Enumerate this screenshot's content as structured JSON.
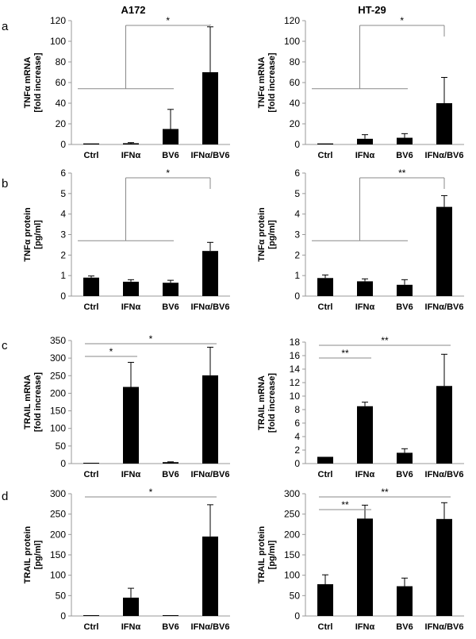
{
  "column_titles": [
    "A172",
    "HT-29"
  ],
  "row_labels": [
    "a",
    "b",
    "c",
    "d"
  ],
  "chart_data": [
    {
      "type": "bar",
      "panel": "a",
      "title": "A172",
      "categories": [
        "Ctrl",
        "IFNα",
        "BV6",
        "IFNα/BV6"
      ],
      "values": [
        1,
        1.2,
        15,
        70
      ],
      "errors": [
        0,
        0.6,
        19,
        44
      ],
      "ylabel": [
        "TNFα mRNA",
        "[fold increase]"
      ],
      "ylim": [
        0,
        120
      ],
      "yticks": [
        0,
        20,
        40,
        60,
        80,
        100,
        120
      ],
      "significance": [
        {
          "label": "*",
          "type": "group",
          "from": 0,
          "to": 2,
          "target": 3
        }
      ]
    },
    {
      "type": "bar",
      "panel": "a",
      "title": "HT-29",
      "categories": [
        "Ctrl",
        "IFNα",
        "BV6",
        "IFNα/BV6"
      ],
      "values": [
        1,
        5.5,
        6.5,
        40
      ],
      "errors": [
        0,
        4,
        4,
        25
      ],
      "ylabel": [
        "TNFα mRNA",
        "[fold increase]"
      ],
      "ylim": [
        0,
        120
      ],
      "yticks": [
        0,
        20,
        40,
        60,
        80,
        100,
        120
      ],
      "significance": [
        {
          "label": "*",
          "type": "group",
          "from": 0,
          "to": 2,
          "target": 3
        }
      ]
    },
    {
      "type": "bar",
      "panel": "b",
      "title": "A172",
      "categories": [
        "Ctrl",
        "IFNα",
        "BV6",
        "IFNα/BV6"
      ],
      "values": [
        0.9,
        0.7,
        0.65,
        2.2
      ],
      "errors": [
        0.08,
        0.1,
        0.12,
        0.42
      ],
      "ylabel": [
        "TNFα protein",
        "[pg/ml]"
      ],
      "ylim": [
        0,
        6
      ],
      "yticks": [
        0,
        1,
        2,
        3,
        4,
        5,
        6
      ],
      "significance": [
        {
          "label": "*",
          "type": "group",
          "from": 0,
          "to": 2,
          "target": 3
        }
      ]
    },
    {
      "type": "bar",
      "panel": "b",
      "title": "HT-29",
      "categories": [
        "Ctrl",
        "IFNα",
        "BV6",
        "IFNα/BV6"
      ],
      "values": [
        0.88,
        0.72,
        0.55,
        4.35
      ],
      "errors": [
        0.15,
        0.12,
        0.25,
        0.55
      ],
      "ylabel": [
        "TNFα protein",
        "[pg/ml]"
      ],
      "ylim": [
        0,
        6
      ],
      "yticks": [
        0,
        1,
        2,
        3,
        4,
        5,
        6
      ],
      "significance": [
        {
          "label": "**",
          "type": "group",
          "from": 0,
          "to": 2,
          "target": 3
        }
      ]
    },
    {
      "type": "bar",
      "panel": "c",
      "title": "A172",
      "categories": [
        "Ctrl",
        "IFNα",
        "BV6",
        "IFNα/BV6"
      ],
      "values": [
        1,
        218,
        4,
        251
      ],
      "errors": [
        0,
        70,
        1,
        80
      ],
      "ylabel": [
        "TRAIL mRNA",
        "[fold increase]"
      ],
      "ylim": [
        0,
        350
      ],
      "yticks": [
        0,
        50,
        100,
        150,
        200,
        250,
        300,
        350
      ],
      "significance": [
        {
          "label": "*",
          "type": "bracket",
          "from": 0,
          "to": 1
        },
        {
          "label": "*",
          "type": "bracket",
          "from": 0,
          "to": 3
        }
      ]
    },
    {
      "type": "bar",
      "panel": "c",
      "title": "HT-29",
      "categories": [
        "Ctrl",
        "IFNα",
        "BV6",
        "IFNα/BV6"
      ],
      "values": [
        1,
        8.5,
        1.6,
        11.5
      ],
      "errors": [
        0,
        0.6,
        0.6,
        4.7
      ],
      "ylabel": [
        "TRAIL mRNA",
        "[fold increase]"
      ],
      "ylim": [
        0,
        18
      ],
      "yticks": [
        0,
        2,
        4,
        6,
        8,
        10,
        12,
        14,
        16,
        18
      ],
      "significance": [
        {
          "label": "**",
          "type": "bracket",
          "from": 0,
          "to": 1
        },
        {
          "label": "**",
          "type": "bracket",
          "from": 0,
          "to": 3
        }
      ]
    },
    {
      "type": "bar",
      "panel": "d",
      "title": "A172",
      "categories": [
        "Ctrl",
        "IFNα",
        "BV6",
        "IFNα/BV6"
      ],
      "values": [
        1,
        45,
        2,
        195
      ],
      "errors": [
        0,
        23,
        0,
        78
      ],
      "ylabel": [
        "TRAIL protein",
        "[pg/ml]"
      ],
      "ylim": [
        0,
        300
      ],
      "yticks": [
        0,
        50,
        100,
        150,
        200,
        250,
        300
      ],
      "significance": [
        {
          "label": "*",
          "type": "bracket",
          "from": 0,
          "to": 3
        }
      ]
    },
    {
      "type": "bar",
      "panel": "d",
      "title": "HT-29",
      "categories": [
        "Ctrl",
        "IFNα",
        "BV6",
        "IFNα/BV6"
      ],
      "values": [
        78,
        239,
        73,
        238
      ],
      "errors": [
        23,
        33,
        20,
        40
      ],
      "ylabel": [
        "TRAIL protein",
        "[pg/ml]"
      ],
      "ylim": [
        0,
        300
      ],
      "yticks": [
        0,
        50,
        100,
        150,
        200,
        250,
        300
      ],
      "significance": [
        {
          "label": "**",
          "type": "bracket",
          "from": 0,
          "to": 1
        },
        {
          "label": "**",
          "type": "bracket",
          "from": 0,
          "to": 3
        }
      ]
    }
  ]
}
